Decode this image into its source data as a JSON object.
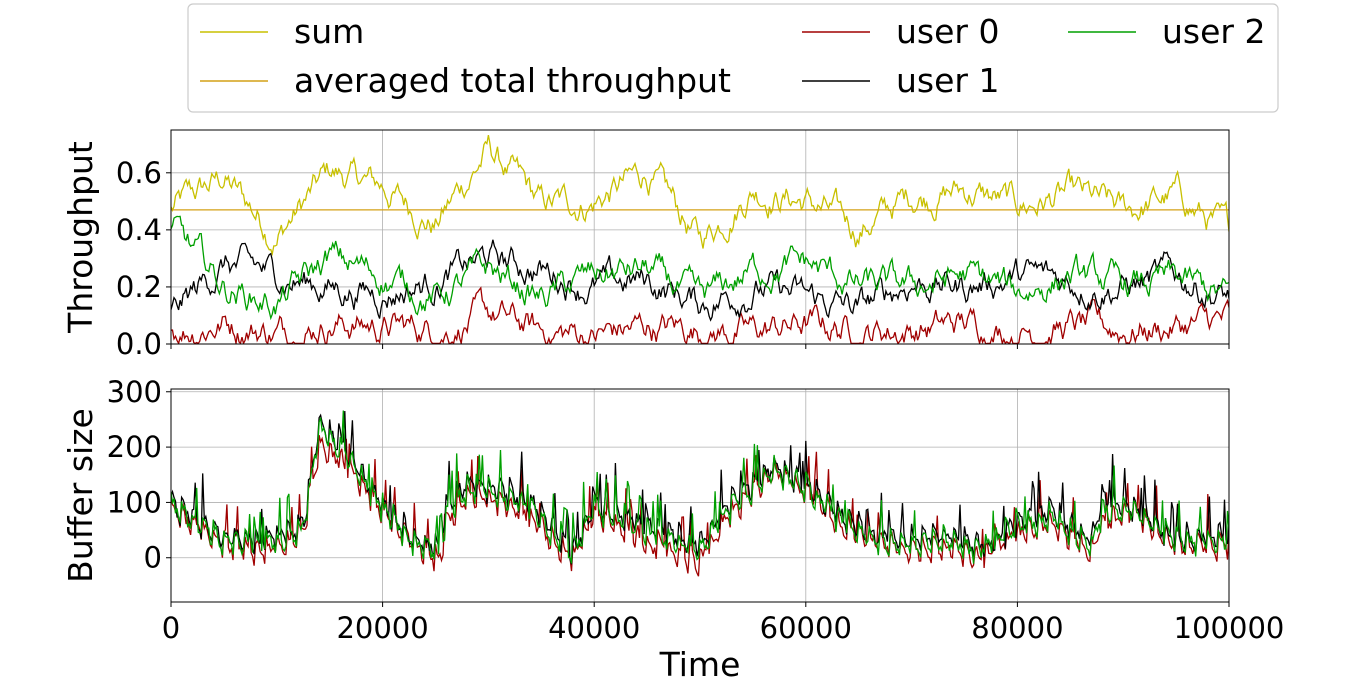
{
  "chart_data": [
    {
      "type": "line",
      "ylabel": "Throughput",
      "xlim": [
        0,
        100000
      ],
      "ylim": [
        0,
        0.75
      ],
      "yticks": [
        0.0,
        0.2,
        0.4,
        0.6
      ],
      "ytick_labels": [
        "0.0",
        "0.2",
        "0.4",
        "0.6"
      ],
      "xticks": [
        0,
        20000,
        40000,
        60000,
        80000,
        100000
      ],
      "grid": true,
      "legend": {
        "placement": "top",
        "columns": 3,
        "entries": [
          "sum",
          "averaged total throughput",
          "user 0",
          "user 1",
          "user 2"
        ]
      },
      "x": [
        0,
        5000,
        10000,
        15000,
        20000,
        25000,
        30000,
        35000,
        40000,
        45000,
        50000,
        55000,
        60000,
        65000,
        70000,
        75000,
        80000,
        85000,
        90000,
        95000,
        100000
      ],
      "series": [
        {
          "name": "sum",
          "color": "#c8c000",
          "values": [
            0.47,
            0.58,
            0.38,
            0.6,
            0.55,
            0.42,
            0.68,
            0.48,
            0.5,
            0.6,
            0.36,
            0.55,
            0.5,
            0.4,
            0.52,
            0.54,
            0.48,
            0.52,
            0.46,
            0.52,
            0.38
          ]
        },
        {
          "name": "averaged total throughput",
          "color": "#d4a017",
          "values": [
            0.47,
            0.47,
            0.47,
            0.47,
            0.47,
            0.47,
            0.47,
            0.47,
            0.47,
            0.47,
            0.47,
            0.47,
            0.47,
            0.47,
            0.47,
            0.47,
            0.47,
            0.47,
            0.47,
            0.47,
            0.47
          ]
        },
        {
          "name": "user 0",
          "color": "#a00000",
          "values": [
            0.05,
            0.08,
            0.04,
            0.08,
            0.06,
            0.05,
            0.1,
            0.04,
            0.03,
            0.06,
            0.05,
            0.04,
            0.07,
            0.05,
            0.05,
            0.07,
            0.05,
            0.06,
            0.05,
            0.06,
            0.08
          ]
        },
        {
          "name": "user 1",
          "color": "#000000",
          "values": [
            0.1,
            0.28,
            0.24,
            0.2,
            0.18,
            0.22,
            0.3,
            0.26,
            0.2,
            0.22,
            0.14,
            0.2,
            0.16,
            0.12,
            0.22,
            0.2,
            0.24,
            0.22,
            0.2,
            0.24,
            0.16
          ]
        },
        {
          "name": "user 2",
          "color": "#00a000",
          "values": [
            0.4,
            0.2,
            0.14,
            0.3,
            0.24,
            0.16,
            0.26,
            0.16,
            0.24,
            0.26,
            0.14,
            0.26,
            0.28,
            0.2,
            0.2,
            0.24,
            0.18,
            0.24,
            0.2,
            0.22,
            0.16
          ]
        }
      ]
    },
    {
      "type": "line",
      "xlabel": "Time",
      "ylabel": "Buffer size",
      "xlim": [
        0,
        100000
      ],
      "ylim": [
        -80,
        305
      ],
      "yticks": [
        0,
        100,
        200,
        300
      ],
      "xticks": [
        0,
        20000,
        40000,
        60000,
        80000,
        100000
      ],
      "grid": true,
      "x": [
        0,
        2000,
        5000,
        8000,
        11000,
        12500,
        14000,
        17000,
        20000,
        23000,
        25500,
        26000,
        28000,
        31000,
        34000,
        37000,
        38000,
        40000,
        43000,
        47000,
        50000,
        53000,
        57000,
        60000,
        63000,
        66000,
        70000,
        73000,
        76000,
        78000,
        80000,
        83000,
        87000,
        88000,
        91000,
        95000,
        100000
      ],
      "series": [
        {
          "name": "user 0",
          "color": "#a00000",
          "values": [
            90,
            60,
            25,
            10,
            20,
            40,
            200,
            160,
            80,
            20,
            -5,
            60,
            110,
            100,
            70,
            10,
            -5,
            80,
            40,
            10,
            -10,
            80,
            150,
            120,
            60,
            30,
            10,
            20,
            0,
            15,
            40,
            60,
            10,
            60,
            80,
            20,
            20
          ]
        },
        {
          "name": "user 1",
          "color": "#000000",
          "values": [
            95,
            70,
            35,
            30,
            40,
            60,
            240,
            180,
            90,
            30,
            10,
            90,
            130,
            120,
            100,
            30,
            10,
            90,
            70,
            40,
            20,
            100,
            160,
            130,
            80,
            40,
            30,
            40,
            20,
            30,
            60,
            80,
            30,
            100,
            90,
            30,
            40
          ]
        },
        {
          "name": "user 2",
          "color": "#00a000",
          "values": [
            90,
            65,
            30,
            20,
            30,
            50,
            230,
            170,
            85,
            25,
            5,
            80,
            120,
            110,
            90,
            20,
            5,
            85,
            60,
            30,
            10,
            90,
            155,
            125,
            70,
            35,
            20,
            30,
            10,
            25,
            50,
            70,
            20,
            80,
            85,
            25,
            30
          ]
        }
      ],
      "xtick_labels": [
        "0",
        "20000",
        "40000",
        "60000",
        "80000",
        "100000"
      ],
      "ytick_labels": [
        "0",
        "100",
        "200",
        "300"
      ]
    }
  ]
}
